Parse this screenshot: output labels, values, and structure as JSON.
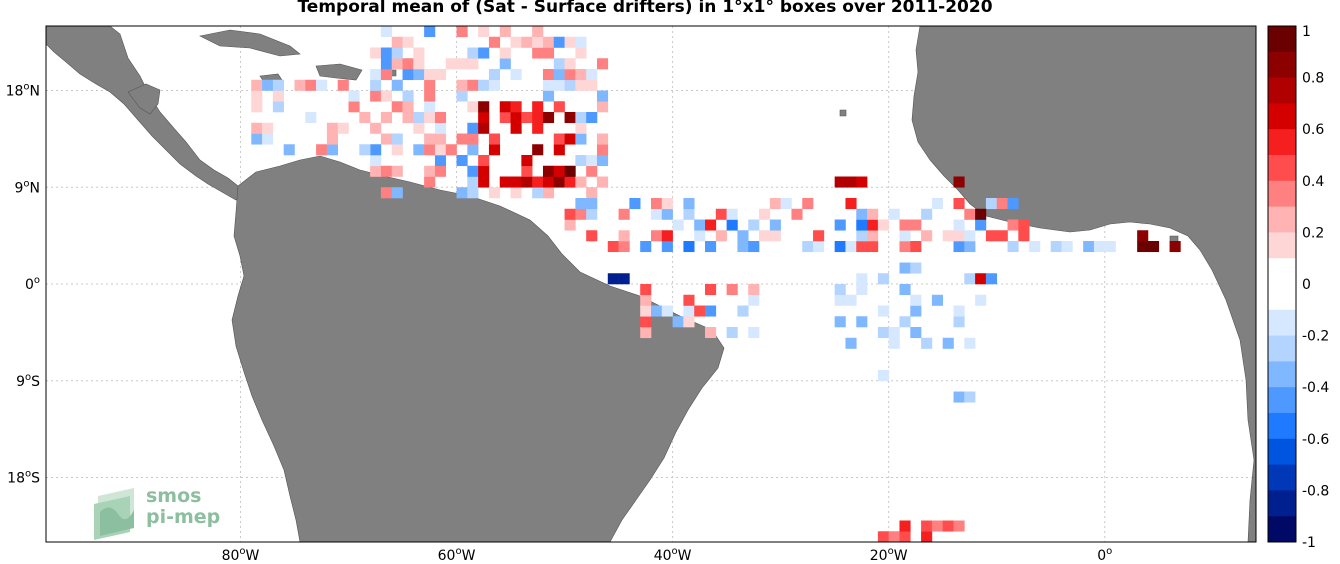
{
  "title": "Temporal mean of (Sat - Surface drifters) in 1°x1° boxes over 2011-2020",
  "logo": {
    "line1": "smos",
    "line2": "pi-mep"
  },
  "colors": {
    "land": "#808080",
    "ocean": "#ffffff",
    "grid": "#c8c8c8"
  },
  "map_extent": {
    "lon": [
      -98,
      14
    ],
    "lat": [
      -24,
      24
    ]
  },
  "lat_ticks": [
    {
      "value": 18,
      "label": "18",
      "hemi": "N"
    },
    {
      "value": 9,
      "label": "9",
      "hemi": "N"
    },
    {
      "value": 0,
      "label": "0",
      "hemi": ""
    },
    {
      "value": -9,
      "label": "9",
      "hemi": "S"
    },
    {
      "value": -18,
      "label": "18",
      "hemi": "S"
    }
  ],
  "lon_ticks": [
    {
      "value": -80,
      "label": "80",
      "hemi": "W"
    },
    {
      "value": -60,
      "label": "60",
      "hemi": "W"
    },
    {
      "value": -40,
      "label": "40",
      "hemi": "W"
    },
    {
      "value": -20,
      "label": "20",
      "hemi": "W"
    },
    {
      "value": 0,
      "label": "0",
      "hemi": ""
    }
  ],
  "colorbar": {
    "range": [
      -1,
      1
    ],
    "labels": [
      "1",
      "0.8",
      "0.6",
      "0.4",
      "0.2",
      "0",
      "-0.2",
      "-0.4",
      "-0.6",
      "-0.8",
      "-1"
    ],
    "colors_top_to_bottom": [
      "#6b0000",
      "#8c0000",
      "#b00000",
      "#d40000",
      "#f51f1f",
      "#ff4d4d",
      "#ff8080",
      "#ffb3b3",
      "#ffd6d6",
      "#ffffff",
      "#ffffff",
      "#d6e8ff",
      "#b3d4ff",
      "#80b8ff",
      "#4d99ff",
      "#1f7aff",
      "#0055e0",
      "#0038b8",
      "#00208f",
      "#000a66"
    ]
  }
}
